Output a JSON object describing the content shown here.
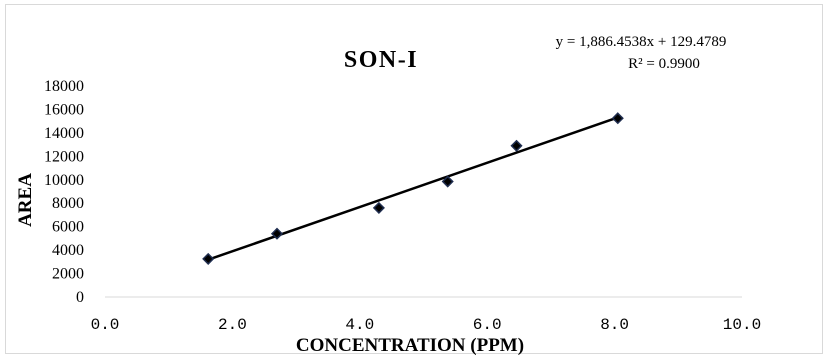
{
  "chart_data": {
    "type": "scatter",
    "title": "SON-I",
    "xlabel": "CONCENTRATION (PPM)",
    "ylabel": "AREA",
    "xlim": [
      0,
      10
    ],
    "ylim": [
      0,
      18000
    ],
    "x_ticks": [
      "0.0",
      "2.0",
      "4.0",
      "6.0",
      "8.0",
      "10.0"
    ],
    "y_ticks": [
      "0",
      "2000",
      "4000",
      "6000",
      "8000",
      "10000",
      "12000",
      "14000",
      "16000",
      "18000"
    ],
    "grid": false,
    "legend": "none",
    "marker": "diamond",
    "marker_color": "#1f2d4f",
    "series": [
      {
        "x": [
          1.62,
          2.7,
          4.3,
          5.38,
          6.46,
          8.05
        ],
        "y": [
          3250,
          5400,
          7600,
          9850,
          12900,
          15250
        ]
      }
    ],
    "trendline": {
      "type": "linear",
      "slope": 1886.4538,
      "intercept": 129.4789,
      "x_range": [
        1.62,
        8.05
      ],
      "color": "#000000",
      "equation_text": "y = 1,886.4538x + 129.4789",
      "r2_text": "R² = 0.9900"
    }
  }
}
